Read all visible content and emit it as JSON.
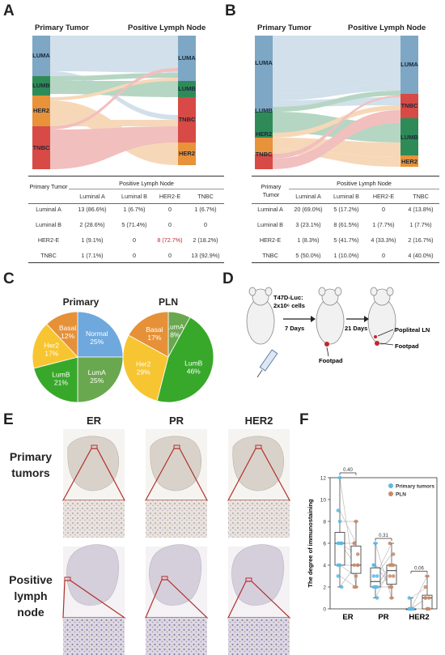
{
  "panels": {
    "a": "A",
    "b": "B",
    "c": "C",
    "d": "D",
    "e": "E",
    "f": "F"
  },
  "sankey": {
    "left_title": "Primary Tumor",
    "right_title": "Positive Lymph Node",
    "colors": {
      "LUMA": "#7da7c4",
      "LUMB": "#2e8b57",
      "HER2": "#e8923a",
      "TNBC": "#d84a45"
    },
    "a": {
      "left_nodes": [
        "LUMA",
        "LUMB",
        "HER2",
        "TNBC"
      ],
      "right_nodes": [
        "LUMA",
        "LUMB",
        "TNBC",
        "HER2"
      ]
    },
    "b": {
      "left_nodes": [
        "LUMA",
        "LUMB",
        "HER2",
        "TNBC"
      ],
      "right_nodes": [
        "LUMA",
        "TNBC",
        "LUMB",
        "HER2"
      ]
    }
  },
  "table_a": {
    "row_header": "Primary Tumor",
    "group_header": "Positive Lymph Node",
    "columns": [
      "Luminal A",
      "Luminal B",
      "HER2-E",
      "TNBC"
    ],
    "rows": [
      {
        "label": "Luminal A",
        "cells": [
          "13 (86.6%)",
          "1 (6.7%)",
          "0",
          "1 (6.7%)"
        ]
      },
      {
        "label": "Luminal B",
        "cells": [
          "2 (28.6%)",
          "5 (71.4%)",
          "0",
          "0"
        ]
      },
      {
        "label": "HER2-E",
        "cells": [
          "1 (9.1%)",
          "0",
          "8 (72.7%)",
          "2 (18.2%)"
        ]
      },
      {
        "label": "TNBC",
        "cells": [
          "1 (7.1%)",
          "0",
          "0",
          "13 (92.9%)"
        ]
      }
    ]
  },
  "table_b": {
    "row_header": "Primary Tumor",
    "group_header": "Positive Lymph Node",
    "columns": [
      "Luminal A",
      "Luminal B",
      "HER2-E",
      "TNBC"
    ],
    "rows": [
      {
        "label": "Luminal A",
        "cells": [
          "20 (69.0%)",
          "5 (17.2%)",
          "0",
          "4 (13.8%)"
        ]
      },
      {
        "label": "Luminal B",
        "cells": [
          "3 (23.1%)",
          "8 (61.5%)",
          "1 (7.7%)",
          "1 (7.7%)"
        ]
      },
      {
        "label": "HER2-E",
        "cells": [
          "1 (8.3%)",
          "5 (41.7%)",
          "4 (33.3%)",
          "2 (16.7%)"
        ]
      },
      {
        "label": "TNBC",
        "cells": [
          "5 (50.0%)",
          "1 (10.0%)",
          "0",
          "4 (40.0%)"
        ]
      }
    ]
  },
  "pie_colors": {
    "Normal": "#6fa8dc",
    "LumA": "#6aa84f",
    "LumB": "#38a82a",
    "Her2": "#f7c531",
    "Basal": "#e69138"
  },
  "chart_data": [
    {
      "type": "pie",
      "title": "Primary",
      "slices": [
        {
          "label": "Normal",
          "value": 25,
          "text": "25%"
        },
        {
          "label": "LumA",
          "value": 25,
          "text": "25%"
        },
        {
          "label": "LumB",
          "value": 21,
          "text": "21%"
        },
        {
          "label": "Her2",
          "value": 17,
          "text": "17%"
        },
        {
          "label": "Basal",
          "value": 12,
          "text": "12%"
        }
      ]
    },
    {
      "type": "pie",
      "title": "PLN",
      "slices": [
        {
          "label": "LumA",
          "value": 8,
          "text": "8%"
        },
        {
          "label": "LumB",
          "value": 46,
          "text": "46%"
        },
        {
          "label": "Her2",
          "value": 29,
          "text": "29%"
        },
        {
          "label": "Basal",
          "value": 17,
          "text": "17%"
        }
      ]
    },
    {
      "type": "scatter",
      "ylabel": "The degree of immunostaining",
      "categories": [
        "ER",
        "PR",
        "HER2"
      ],
      "ylim": [
        0,
        12
      ],
      "yticks": [
        0,
        2,
        4,
        6,
        8,
        10,
        12
      ],
      "series": [
        {
          "name": "Primary tumors",
          "color": "#5cb8e6",
          "points": [
            [
              6,
              4,
              6,
              3,
              8,
              6,
              9,
              12,
              2,
              4,
              6
            ],
            [
              4,
              2,
              1,
              3,
              2,
              2,
              4,
              6,
              3,
              2
            ],
            [
              1,
              0,
              0,
              0,
              0,
              0,
              0,
              0
            ]
          ]
        },
        {
          "name": "PLN",
          "color": "#c8896a",
          "points": [
            [
              6,
              3,
              4,
              2,
              8,
              5,
              6,
              2,
              4,
              4
            ],
            [
              3,
              2,
              4,
              6,
              4,
              3,
              2,
              1,
              5,
              4
            ],
            [
              2,
              0,
              1,
              1,
              3,
              0,
              1,
              0
            ]
          ]
        }
      ],
      "pvalues": [
        "0.40",
        "0.31",
        "0.06"
      ]
    }
  ],
  "panel_d": {
    "cells_label": "T47D-Luc:",
    "cells_count": "2x10⁶ cells",
    "step1": "7 Days",
    "step2": "21 Days",
    "footpad1": "Footpad",
    "popliteal": "Popliteal LN",
    "footpad2": "Footpad"
  },
  "panel_e": {
    "columns": [
      "ER",
      "PR",
      "HER2"
    ],
    "row1": [
      "Primary",
      "tumors"
    ],
    "row2": [
      "Positive",
      "lymph",
      "node"
    ]
  }
}
